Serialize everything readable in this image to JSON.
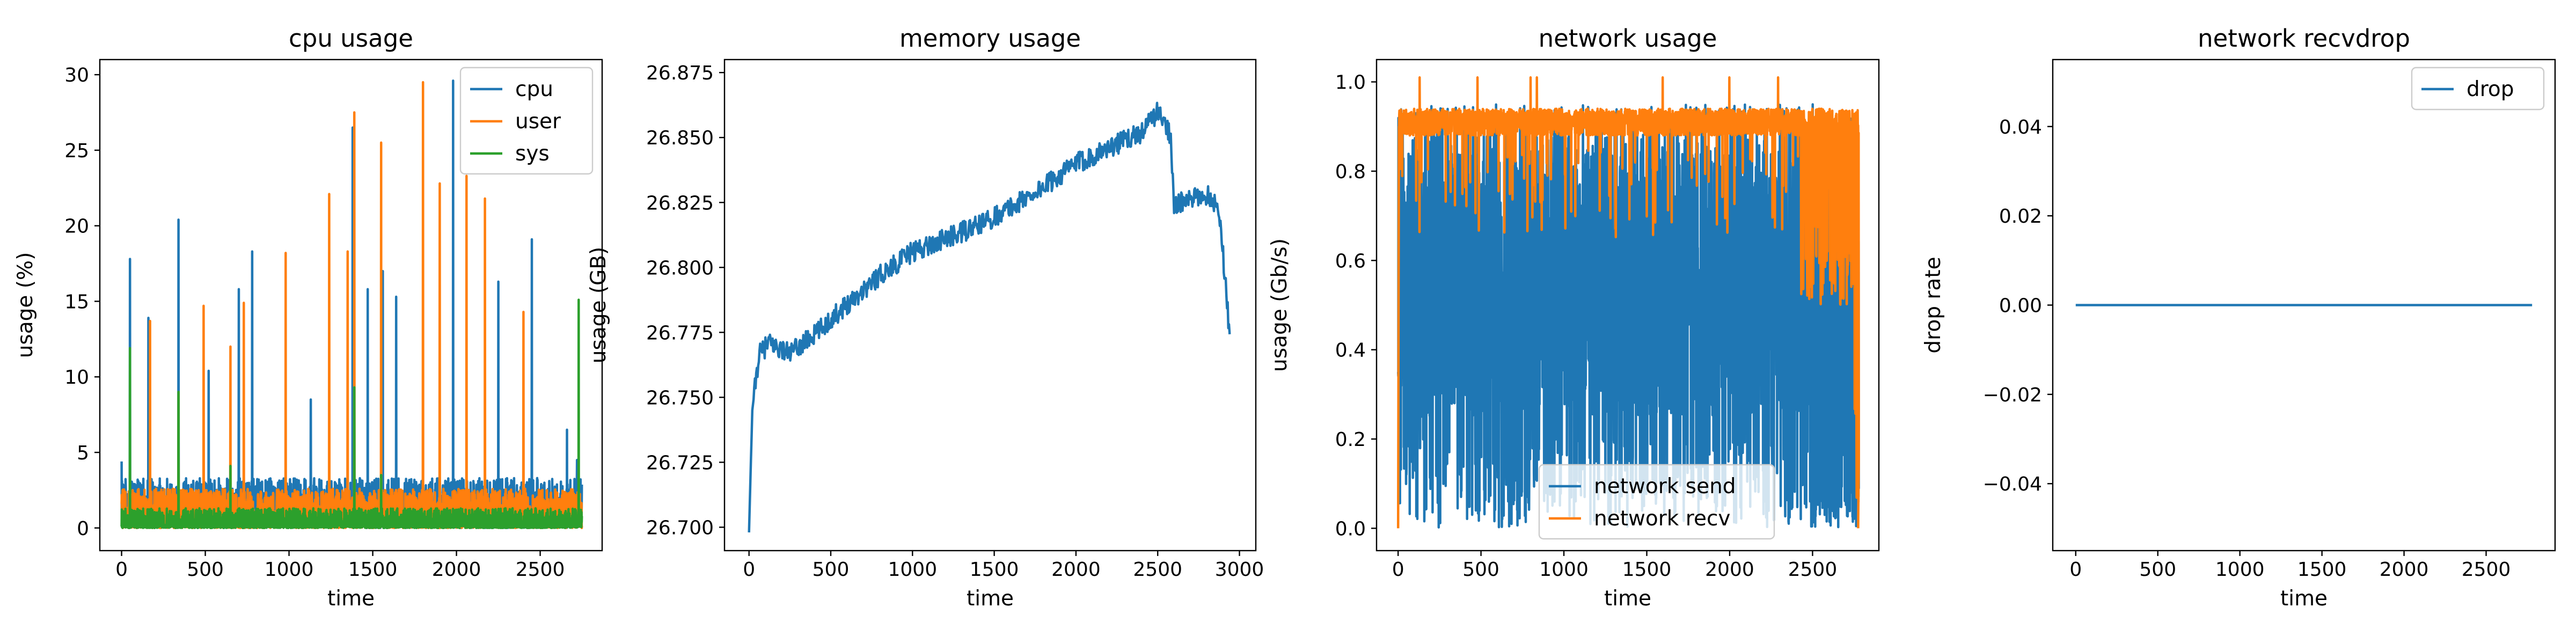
{
  "colors": {
    "blue": "#1f77b4",
    "orange": "#ff7f0e",
    "green": "#2ca02c"
  },
  "chart_data": [
    {
      "type": "line",
      "title": "cpu usage",
      "xlabel": "time",
      "ylabel": "usage (%)",
      "xlim": [
        -130,
        2870
      ],
      "ylim": [
        -1.5,
        31.0
      ],
      "xticks": [
        0,
        500,
        1000,
        1500,
        2000,
        2500
      ],
      "yticks": [
        0,
        5,
        10,
        15,
        20,
        25,
        30
      ],
      "legend": "top-right",
      "n_points": 2750,
      "series": [
        {
          "name": "cpu",
          "color": "#1f77b4",
          "baseline": [
            0.3,
            3.3
          ],
          "rest_level": 0.5,
          "spikes": [
            [
              0,
              4.4
            ],
            [
              50,
              17.8
            ],
            [
              160,
              13.9
            ],
            [
              340,
              20.4
            ],
            [
              520,
              10.4
            ],
            [
              700,
              15.8
            ],
            [
              780,
              18.3
            ],
            [
              1130,
              8.5
            ],
            [
              1380,
              26.5
            ],
            [
              1470,
              15.8
            ],
            [
              1560,
              17.0
            ],
            [
              1640,
              15.3
            ],
            [
              1980,
              29.6
            ],
            [
              2250,
              16.3
            ],
            [
              2450,
              19.1
            ],
            [
              2660,
              6.5
            ],
            [
              2720,
              4.5
            ]
          ]
        },
        {
          "name": "user",
          "color": "#ff7f0e",
          "baseline": [
            0.2,
            2.6
          ],
          "rest_level": 0.3,
          "spikes": [
            [
              60,
              1.0
            ],
            [
              170,
              13.7
            ],
            [
              340,
              9.0
            ],
            [
              490,
              14.7
            ],
            [
              650,
              12.0
            ],
            [
              730,
              14.9
            ],
            [
              980,
              18.2
            ],
            [
              1240,
              22.1
            ],
            [
              1350,
              18.3
            ],
            [
              1390,
              27.5
            ],
            [
              1550,
              25.5
            ],
            [
              1800,
              29.5
            ],
            [
              1900,
              22.8
            ],
            [
              2060,
              23.3
            ],
            [
              2170,
              21.8
            ],
            [
              2400,
              14.3
            ]
          ]
        },
        {
          "name": "sys",
          "color": "#2ca02c",
          "baseline": [
            0.0,
            1.3
          ],
          "rest_level": 0.2,
          "spikes": [
            [
              50,
              11.9
            ],
            [
              340,
              9.0
            ],
            [
              650,
              4.1
            ],
            [
              1390,
              9.3
            ],
            [
              1550,
              3.5
            ],
            [
              2730,
              15.1
            ]
          ]
        }
      ]
    },
    {
      "type": "line",
      "title": "memory usage",
      "xlabel": "time",
      "ylabel": "usage (GB)",
      "xlim": [
        -150,
        3100
      ],
      "ylim": [
        26.691,
        26.88
      ],
      "xticks": [
        0,
        500,
        1000,
        1500,
        2000,
        2500,
        3000
      ],
      "yticks": [
        26.7,
        26.725,
        26.75,
        26.775,
        26.8,
        26.825,
        26.85,
        26.875
      ],
      "ytick_labels": [
        "26.700",
        "26.725",
        "26.750",
        "26.775",
        "26.800",
        "26.825",
        "26.850",
        "26.875"
      ],
      "series": [
        {
          "name": "memory",
          "color": "#1f77b4",
          "noise": 0.004,
          "anchors": [
            [
              0,
              26.698
            ],
            [
              20,
              26.745
            ],
            [
              60,
              26.766
            ],
            [
              120,
              26.771
            ],
            [
              250,
              26.767
            ],
            [
              400,
              26.774
            ],
            [
              600,
              26.786
            ],
            [
              800,
              26.797
            ],
            [
              1000,
              26.806
            ],
            [
              1200,
              26.811
            ],
            [
              1400,
              26.816
            ],
            [
              1600,
              26.823
            ],
            [
              1800,
              26.831
            ],
            [
              2000,
              26.84
            ],
            [
              2200,
              26.846
            ],
            [
              2400,
              26.852
            ],
            [
              2500,
              26.86
            ],
            [
              2580,
              26.851
            ],
            [
              2600,
              26.824
            ],
            [
              2700,
              26.826
            ],
            [
              2800,
              26.828
            ],
            [
              2870,
              26.824
            ],
            [
              2900,
              26.805
            ],
            [
              2940,
              26.774
            ]
          ]
        }
      ]
    },
    {
      "type": "line",
      "title": "network usage",
      "xlabel": "time",
      "ylabel": "usage (Gb/s)",
      "xlim": [
        -130,
        2900
      ],
      "ylim": [
        -0.05,
        1.05
      ],
      "xticks": [
        0,
        500,
        1000,
        1500,
        2000,
        2500
      ],
      "yticks": [
        0.0,
        0.2,
        0.4,
        0.6,
        0.8,
        1.0
      ],
      "ytick_labels": [
        "0.0",
        "0.2",
        "0.4",
        "0.6",
        "0.8",
        "1.0"
      ],
      "legend": "bottom-center",
      "n_points": 2780,
      "series": [
        {
          "name": "network send",
          "color": "#1f77b4",
          "band": [
            0.0,
            0.95
          ],
          "typical": [
            0.25,
            0.85
          ]
        },
        {
          "name": "network recv",
          "color": "#ff7f0e",
          "band": [
            0.45,
            1.01
          ],
          "typical": [
            0.88,
            0.94
          ]
        }
      ]
    },
    {
      "type": "line",
      "title": "network recvdrop",
      "xlabel": "time",
      "ylabel": "drop rate",
      "xlim": [
        -140,
        2920
      ],
      "ylim": [
        -0.055,
        0.055
      ],
      "xticks": [
        0,
        500,
        1000,
        1500,
        2000,
        2500
      ],
      "yticks": [
        -0.04,
        -0.02,
        0.0,
        0.02,
        0.04
      ],
      "ytick_labels": [
        "−0.04",
        "−0.02",
        "0.00",
        "0.02",
        "0.04"
      ],
      "legend": "top-right",
      "series": [
        {
          "name": "drop",
          "color": "#1f77b4",
          "x": [
            0,
            2780
          ],
          "y": [
            0,
            0
          ]
        }
      ]
    }
  ]
}
